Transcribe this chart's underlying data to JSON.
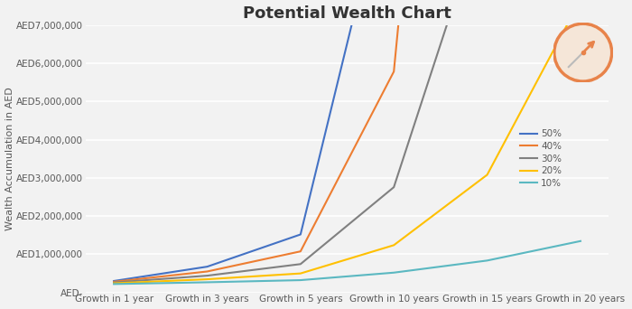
{
  "title": "Potential Wealth Chart",
  "ylabel": "Wealth Accumulation in AED",
  "categories": [
    "Growth in 1 year",
    "Growth in 3 years",
    "Growth in 5 years",
    "Growth in 10 years",
    "Growth in 15 years",
    "Growth in 20 years"
  ],
  "x_positions": [
    0,
    1,
    2,
    3,
    4,
    5
  ],
  "initial": 200000,
  "rates": [
    0.5,
    0.4,
    0.3,
    0.2,
    0.1
  ],
  "years": [
    1,
    3,
    5,
    10,
    15,
    20
  ],
  "rate_labels": [
    "50%",
    "40%",
    "30%",
    "20%",
    "10%"
  ],
  "line_colors": [
    "#4472C4",
    "#ED7D31",
    "#808080",
    "#FFC000",
    "#5BB8C1"
  ],
  "ylim": [
    0,
    7000000
  ],
  "yticks": [
    0,
    1000000,
    2000000,
    3000000,
    4000000,
    5000000,
    6000000,
    7000000
  ],
  "ytick_labels": [
    "AED-",
    "AED1,000,000",
    "AED2,000,000",
    "AED3,000,000",
    "AED4,000,000",
    "AED5,000,000",
    "AED6,000,000",
    "AED7,000,000"
  ],
  "bg_color": "#F2F2F2",
  "grid_color": "#FFFFFF",
  "text_color": "#595959",
  "compass_color": "#E8834A",
  "title_fontsize": 13,
  "axis_label_fontsize": 8,
  "tick_fontsize": 7.5,
  "legend_fontsize": 7.5,
  "line_width": 1.5
}
